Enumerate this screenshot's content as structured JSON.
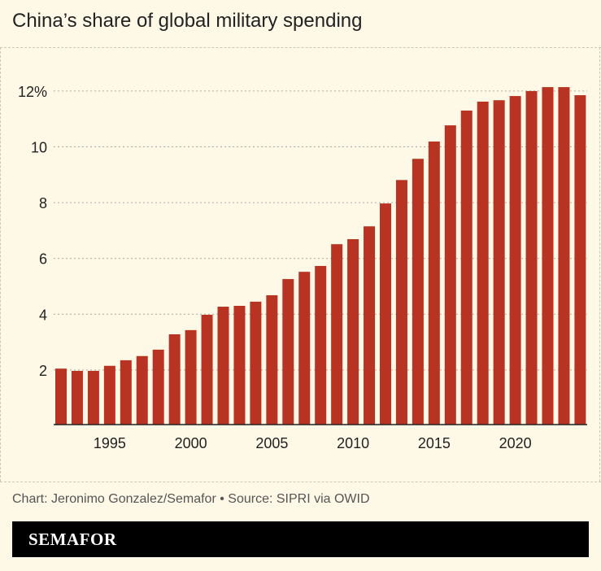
{
  "chart_data": {
    "type": "bar",
    "title": "China’s share of global military spending",
    "xlabel": "",
    "ylabel": "",
    "categories": [
      1992,
      1993,
      1994,
      1995,
      1996,
      1997,
      1998,
      1999,
      2000,
      2001,
      2002,
      2003,
      2004,
      2005,
      2006,
      2007,
      2008,
      2009,
      2010,
      2011,
      2012,
      2013,
      2014,
      2015,
      2016,
      2017,
      2018,
      2019,
      2020,
      2021,
      2022,
      2023,
      2024
    ],
    "values": [
      2.05,
      1.97,
      1.97,
      2.15,
      2.35,
      2.5,
      2.73,
      3.28,
      3.43,
      3.98,
      4.27,
      4.3,
      4.45,
      4.68,
      5.26,
      5.52,
      5.73,
      6.51,
      6.69,
      7.15,
      7.97,
      8.81,
      9.57,
      10.19,
      10.77,
      11.3,
      11.62,
      11.67,
      11.82,
      12.0,
      12.14,
      12.14,
      11.85
    ],
    "ylim": [
      0,
      12.5
    ],
    "yticks": [
      {
        "value": 2,
        "label": "2"
      },
      {
        "value": 4,
        "label": "4"
      },
      {
        "value": 6,
        "label": "6"
      },
      {
        "value": 8,
        "label": "8"
      },
      {
        "value": 10,
        "label": "10"
      },
      {
        "value": 12,
        "label": "12%"
      }
    ],
    "xticks": [
      {
        "value": 1995,
        "label": "1995"
      },
      {
        "value": 2000,
        "label": "2000"
      },
      {
        "value": 2005,
        "label": "2005"
      },
      {
        "value": 2010,
        "label": "2010"
      },
      {
        "value": 2015,
        "label": "2015"
      },
      {
        "value": 2020,
        "label": "2020"
      }
    ],
    "grid": true,
    "bar_color": "#b93323"
  },
  "credit": "Chart: Jeronimo Gonzalez/Semafor • Source: SIPRI via OWID",
  "brand": "SEMAFOR"
}
